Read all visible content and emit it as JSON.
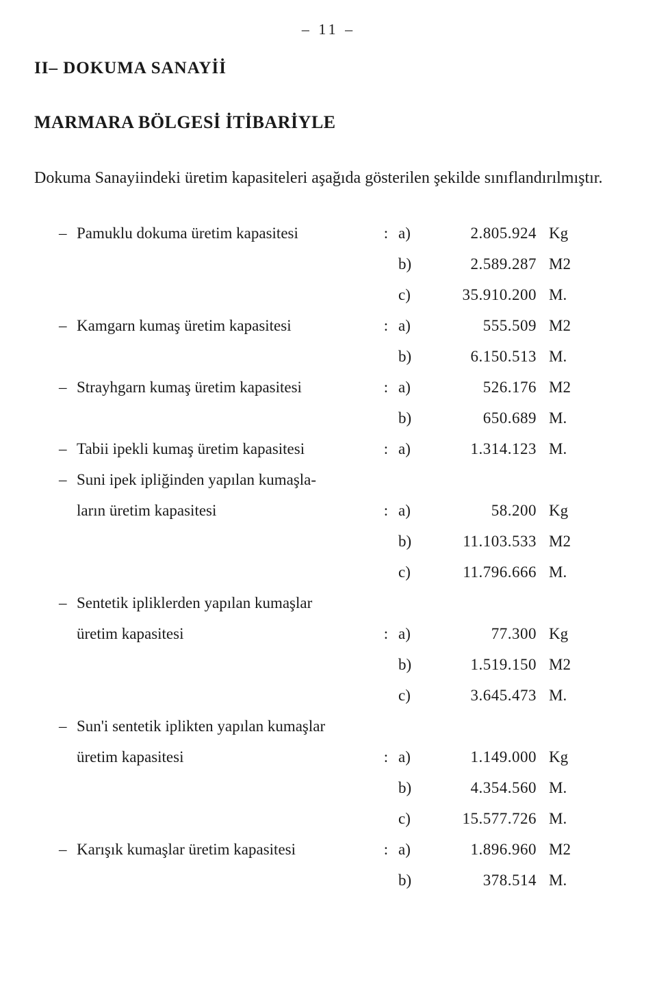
{
  "page_number": "– 11 –",
  "section_title": "II– DOKUMA SANAYİİ",
  "region_title": "MARMARA BÖLGESİ İTİBARİYLE",
  "intro": "Dokuma Sanayiindeki üretim kapasiteleri aşağıda gösterilen şekilde sınıflandırılmıştır.",
  "items": [
    {
      "label": "Pamuklu dokuma üretim kapasitesi",
      "rows": [
        {
          "letter": "a)",
          "value": "2.805.924",
          "unit": "Kg"
        },
        {
          "letter": "b)",
          "value": "2.589.287",
          "unit": "M2"
        },
        {
          "letter": "c)",
          "value": "35.910.200",
          "unit": "M."
        }
      ]
    },
    {
      "label": "Kamgarn kumaş üretim kapasitesi",
      "rows": [
        {
          "letter": "a)",
          "value": "555.509",
          "unit": "M2"
        },
        {
          "letter": "b)",
          "value": "6.150.513",
          "unit": "M."
        }
      ]
    },
    {
      "label": "Strayhgarn kumaş üretim kapasitesi",
      "rows": [
        {
          "letter": "a)",
          "value": "526.176",
          "unit": "M2"
        },
        {
          "letter": "b)",
          "value": "650.689",
          "unit": "M."
        }
      ]
    },
    {
      "label": "Tabii ipekli kumaş üretim kapasitesi",
      "rows": [
        {
          "letter": "a)",
          "value": "1.314.123",
          "unit": "M."
        }
      ]
    },
    {
      "label": "Suni ipek ipliğinden yapılan kumaşların üretim kapasitesi",
      "label_line1": "Suni ipek ipliğinden yapılan kumaşla-",
      "label_line2": "ların üretim kapasitesi",
      "wrapped": true,
      "rows": [
        {
          "letter": "a)",
          "value": "58.200",
          "unit": "Kg"
        },
        {
          "letter": "b)",
          "value": "11.103.533",
          "unit": "M2"
        },
        {
          "letter": "c)",
          "value": "11.796.666",
          "unit": "M."
        }
      ]
    },
    {
      "label": "Sentetik ipliklerden yapılan kumaşlar üretim kapasitesi",
      "label_line1": "Sentetik ipliklerden yapılan kumaşlar",
      "label_line2": "üretim kapasitesi",
      "wrapped": true,
      "rows": [
        {
          "letter": "a)",
          "value": "77.300",
          "unit": "Kg"
        },
        {
          "letter": "b)",
          "value": "1.519.150",
          "unit": "M2"
        },
        {
          "letter": "c)",
          "value": "3.645.473",
          "unit": "M."
        }
      ]
    },
    {
      "label": "Sun'i sentetik iplikten yapılan kumaşlar üretim kapasitesi",
      "label_line1": "Sun'i sentetik iplikten yapılan kumaşlar",
      "label_line2": "üretim kapasitesi",
      "wrapped": true,
      "rows": [
        {
          "letter": "a)",
          "value": "1.149.000",
          "unit": "Kg"
        },
        {
          "letter": "b)",
          "value": "4.354.560",
          "unit": "M."
        },
        {
          "letter": "c)",
          "value": "15.577.726",
          "unit": "M."
        }
      ]
    },
    {
      "label": "Karışık kumaşlar üretim kapasitesi",
      "rows": [
        {
          "letter": "a)",
          "value": "1.896.960",
          "unit": "M2"
        },
        {
          "letter": "b)",
          "value": "378.514",
          "unit": "M."
        }
      ]
    }
  ],
  "dash": "–",
  "colon": ":"
}
